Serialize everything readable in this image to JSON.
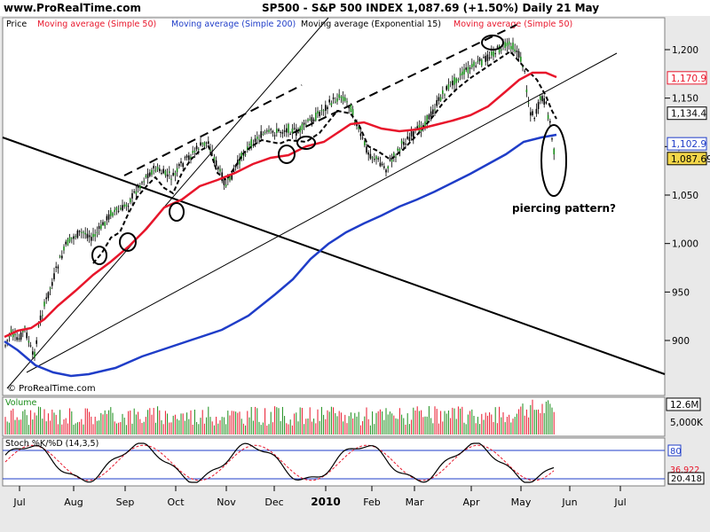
{
  "header": {
    "site": "www.ProRealTime.com",
    "title": "SP500 - S&P 500 INDEX    1,087.69 (+1.50%)    Daily  21 May"
  },
  "legend": [
    {
      "label": "Price",
      "color": "#000000"
    },
    {
      "label": "Moving average (Simple 50)",
      "color": "#e8162b"
    },
    {
      "label": "Moving average (Simple 200)",
      "color": "#1f3dc8"
    },
    {
      "label": "Moving average (Exponential 15)",
      "color": "#000000"
    },
    {
      "label": "Moving average (Simple 50)",
      "color": "#e8162b"
    }
  ],
  "watermark": "© ProRealTime.com",
  "annotation": "piercing pattern?",
  "price_axis": {
    "ticks": [
      "1,200",
      "1,150",
      "1,100",
      "1,050",
      "1,000",
      "950",
      "900"
    ],
    "tick_values": [
      1200,
      1150,
      1100,
      1050,
      1000,
      950,
      900
    ],
    "ylim": [
      855,
      1228
    ]
  },
  "price_tags": [
    {
      "label": "1,170.9",
      "value": 1170.9,
      "color": "#e8162b",
      "bg": "#ffffff"
    },
    {
      "label": "1,134.4",
      "value": 1134.4,
      "color": "#000000",
      "bg": "#ffffff"
    },
    {
      "label": "1,102.9",
      "value": 1102.9,
      "color": "#1f3dc8",
      "bg": "#ffffff"
    },
    {
      "label": "1,087.69",
      "value": 1087.69,
      "color": "#000000",
      "bg": "#f3d64a"
    }
  ],
  "volume_panel": {
    "label": "Volume",
    "ticks": [
      "12.6M",
      "5,000K"
    ]
  },
  "stoch_panel": {
    "label": "Stoch %K/%D (14,3,5)",
    "axis_labels": [
      "80",
      "36.922",
      "20.418"
    ],
    "levels": [
      80,
      20
    ]
  },
  "x_axis": {
    "months": [
      "Jul",
      "Aug",
      "Sep",
      "Oct",
      "Nov",
      "Dec",
      "2010",
      "Feb",
      "Mar",
      "Apr",
      "May",
      "Jun",
      "Jul"
    ]
  },
  "chart_data": {
    "type": "line",
    "title": "SP500 - S&P 500 INDEX",
    "series": [
      {
        "name": "Price",
        "color": "#000000",
        "points": [
          [
            "Jul",
            885
          ],
          [
            "Jul",
            880
          ],
          [
            "Aug",
            1000
          ],
          [
            "Aug",
            1015
          ],
          [
            "Sep",
            1030
          ],
          [
            "Sep",
            1060
          ],
          [
            "Oct",
            1050
          ],
          [
            "Oct",
            1095
          ],
          [
            "Nov",
            1040
          ],
          [
            "Nov",
            1095
          ],
          [
            "Dec",
            1110
          ],
          [
            "Dec",
            1110
          ],
          [
            "2010",
            1145
          ],
          [
            "2010",
            1125
          ],
          [
            "Feb",
            1060
          ],
          [
            "Feb",
            1080
          ],
          [
            "Mar",
            1115
          ],
          [
            "Mar",
            1150
          ],
          [
            "Apr",
            1190
          ],
          [
            "Apr",
            1212
          ],
          [
            "May",
            1130
          ],
          [
            "May",
            1075
          ],
          [
            "May",
            1088
          ]
        ]
      },
      {
        "name": "Moving average (Simple 50)",
        "color": "#e8162b",
        "points": [
          [
            "Jul",
            905
          ],
          [
            "Aug",
            945
          ],
          [
            "Sep",
            1000
          ],
          [
            "Oct",
            1040
          ],
          [
            "Nov",
            1060
          ],
          [
            "Dec",
            1090
          ],
          [
            "2010",
            1105
          ],
          [
            "Feb",
            1115
          ],
          [
            "Mar",
            1110
          ],
          [
            "Apr",
            1150
          ],
          [
            "May",
            1175
          ],
          [
            "May",
            1171
          ]
        ]
      },
      {
        "name": "Moving average (Simple 200)",
        "color": "#1f3dc8",
        "points": [
          [
            "Jul",
            888
          ],
          [
            "Aug",
            880
          ],
          [
            "Sep",
            883
          ],
          [
            "Oct",
            895
          ],
          [
            "Nov",
            905
          ],
          [
            "Dec",
            925
          ],
          [
            "2010",
            950
          ],
          [
            "Feb",
            990
          ],
          [
            "Mar",
            1030
          ],
          [
            "Apr",
            1055
          ],
          [
            "May",
            1090
          ],
          [
            "May",
            1103
          ]
        ]
      }
    ],
    "ylim": [
      855,
      1228
    ]
  }
}
